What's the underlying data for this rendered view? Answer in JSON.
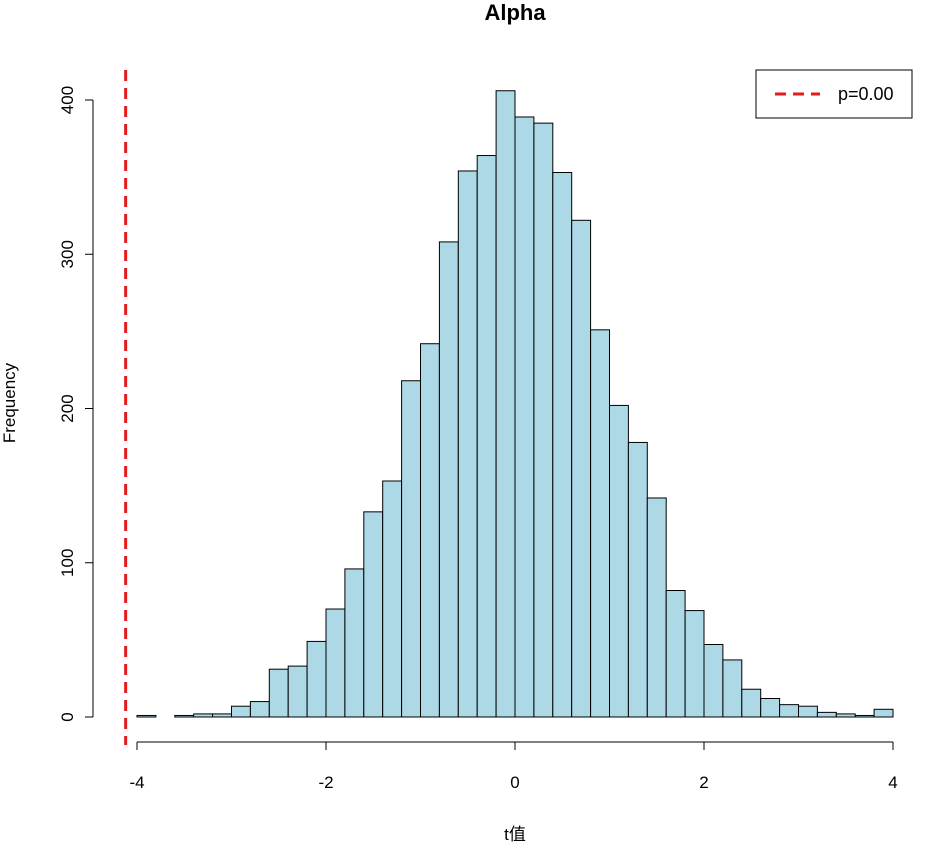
{
  "chart_data": {
    "type": "bar",
    "title": "Alpha",
    "xlabel": "t值",
    "ylabel": "Frequency",
    "xlim": [
      -4.1,
      4.0
    ],
    "ylim": [
      0,
      400
    ],
    "xticks": [
      -4,
      -2,
      0,
      2,
      4
    ],
    "yticks": [
      0,
      100,
      200,
      300,
      400
    ],
    "bin_width": 0.2,
    "bins": [
      {
        "x0": -4.0,
        "x1": -3.8,
        "count": 1
      },
      {
        "x0": -3.8,
        "x1": -3.6,
        "count": 0
      },
      {
        "x0": -3.6,
        "x1": -3.4,
        "count": 1
      },
      {
        "x0": -3.4,
        "x1": -3.2,
        "count": 2
      },
      {
        "x0": -3.2,
        "x1": -3.0,
        "count": 2
      },
      {
        "x0": -3.0,
        "x1": -2.8,
        "count": 7
      },
      {
        "x0": -2.8,
        "x1": -2.6,
        "count": 10
      },
      {
        "x0": -2.6,
        "x1": -2.4,
        "count": 31
      },
      {
        "x0": -2.4,
        "x1": -2.2,
        "count": 33
      },
      {
        "x0": -2.2,
        "x1": -2.0,
        "count": 49
      },
      {
        "x0": -2.0,
        "x1": -1.8,
        "count": 70
      },
      {
        "x0": -1.8,
        "x1": -1.6,
        "count": 96
      },
      {
        "x0": -1.6,
        "x1": -1.4,
        "count": 133
      },
      {
        "x0": -1.4,
        "x1": -1.2,
        "count": 153
      },
      {
        "x0": -1.2,
        "x1": -1.0,
        "count": 218
      },
      {
        "x0": -1.0,
        "x1": -0.8,
        "count": 242
      },
      {
        "x0": -0.8,
        "x1": -0.6,
        "count": 308
      },
      {
        "x0": -0.6,
        "x1": -0.4,
        "count": 354
      },
      {
        "x0": -0.4,
        "x1": -0.2,
        "count": 364
      },
      {
        "x0": -0.2,
        "x1": 0.0,
        "count": 406
      },
      {
        "x0": 0.0,
        "x1": 0.2,
        "count": 389
      },
      {
        "x0": 0.2,
        "x1": 0.4,
        "count": 385
      },
      {
        "x0": 0.4,
        "x1": 0.6,
        "count": 353
      },
      {
        "x0": 0.6,
        "x1": 0.8,
        "count": 322
      },
      {
        "x0": 0.8,
        "x1": 1.0,
        "count": 251
      },
      {
        "x0": 1.0,
        "x1": 1.2,
        "count": 202
      },
      {
        "x0": 1.2,
        "x1": 1.4,
        "count": 178
      },
      {
        "x0": 1.4,
        "x1": 1.6,
        "count": 142
      },
      {
        "x0": 1.6,
        "x1": 1.8,
        "count": 82
      },
      {
        "x0": 1.8,
        "x1": 2.0,
        "count": 69
      },
      {
        "x0": 2.0,
        "x1": 2.2,
        "count": 47
      },
      {
        "x0": 2.2,
        "x1": 2.4,
        "count": 37
      },
      {
        "x0": 2.4,
        "x1": 2.6,
        "count": 18
      },
      {
        "x0": 2.6,
        "x1": 2.8,
        "count": 12
      },
      {
        "x0": 2.8,
        "x1": 3.0,
        "count": 8
      },
      {
        "x0": 3.0,
        "x1": 3.2,
        "count": 7
      },
      {
        "x0": 3.2,
        "x1": 3.4,
        "count": 3
      },
      {
        "x0": 3.4,
        "x1": 3.6,
        "count": 2
      },
      {
        "x0": 3.6,
        "x1": 3.8,
        "count": 1
      },
      {
        "x0": 3.8,
        "x1": 4.0,
        "count": 5
      }
    ],
    "vline": {
      "x": -4.12,
      "color": "#e41a1c",
      "style": "dashed"
    },
    "legend": {
      "position": "top-right",
      "entries": [
        {
          "label": "p=0.00",
          "color": "#e41a1c",
          "style": "dashed"
        }
      ]
    },
    "bar_color": "#add8e6",
    "bar_stroke": "#000000",
    "grid": false
  }
}
